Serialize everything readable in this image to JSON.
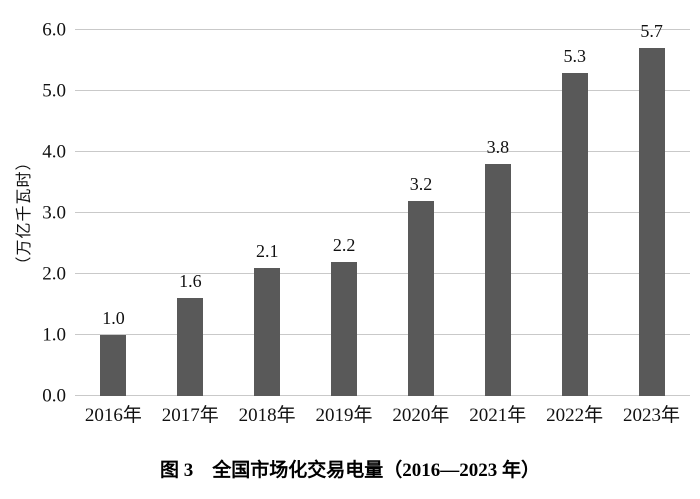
{
  "figure": {
    "caption": "图 3　全国市场化交易电量（2016—2023 年）"
  },
  "chart_data": {
    "type": "bar",
    "title": "全国市场化交易电量（2016—2023 年）",
    "categories": [
      "2016年",
      "2017年",
      "2018年",
      "2019年",
      "2020年",
      "2021年",
      "2022年",
      "2023年"
    ],
    "values": [
      1.0,
      1.6,
      2.1,
      2.2,
      3.2,
      3.8,
      5.3,
      5.7
    ],
    "value_labels": [
      "1.0",
      "1.6",
      "2.1",
      "2.2",
      "3.2",
      "3.8",
      "5.3",
      "5.7"
    ],
    "xlabel": "",
    "ylabel": "（万亿千瓦时）",
    "ylim": [
      0.0,
      6.0
    ],
    "y_ticks": [
      "0.0",
      "1.0",
      "2.0",
      "3.0",
      "4.0",
      "5.0",
      "6.0"
    ],
    "grid": "horizontal-only",
    "legend": "none",
    "colors": {
      "bar": "#595959",
      "gridline": "#c9c9c9",
      "text": "#111111",
      "background": "#ffffff"
    }
  }
}
